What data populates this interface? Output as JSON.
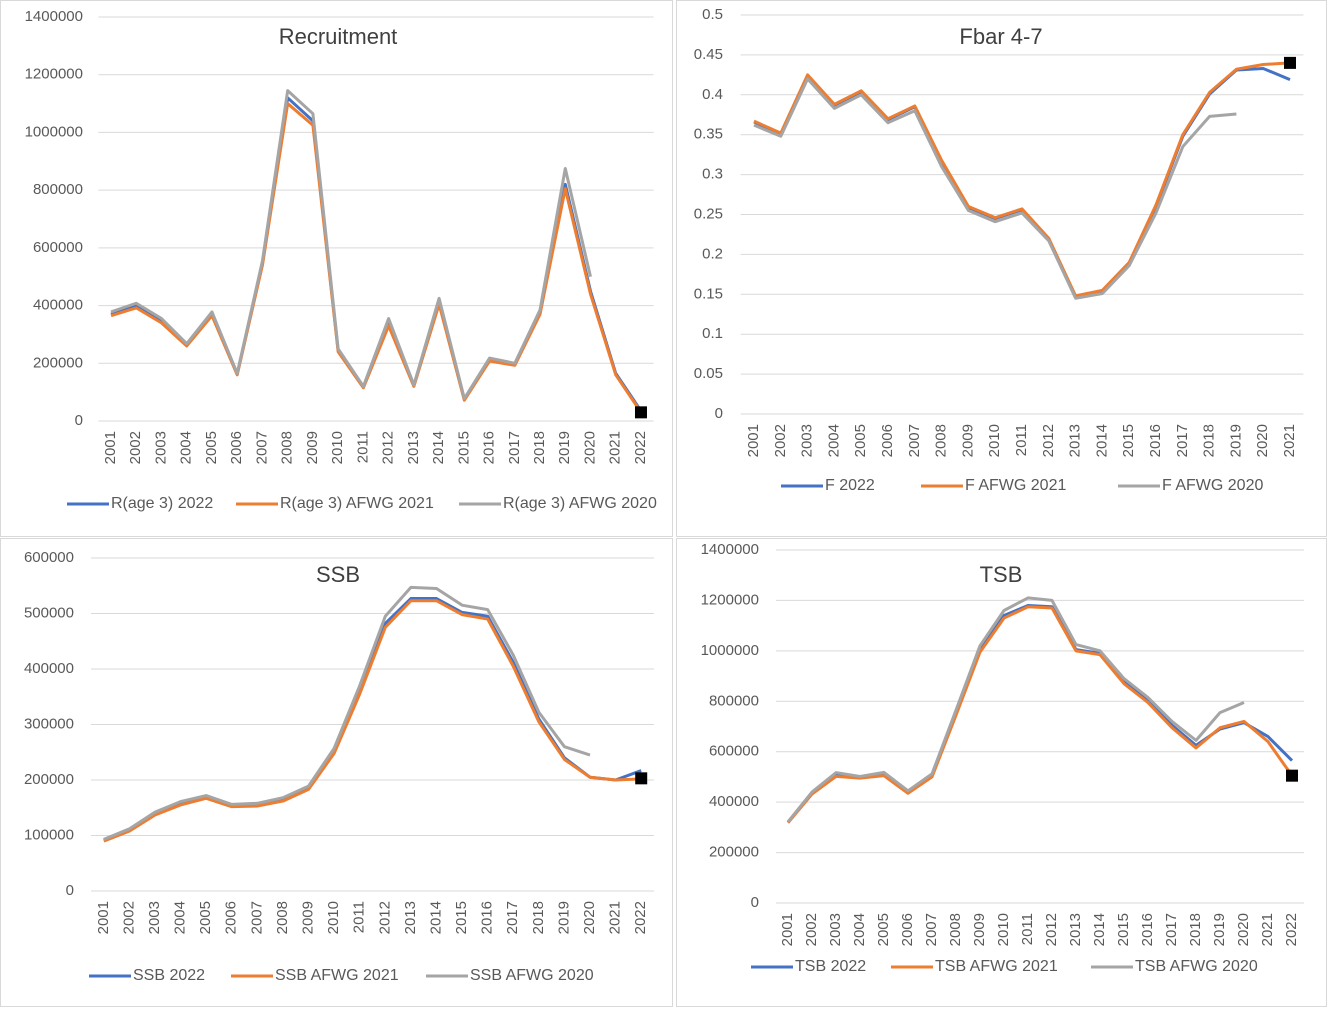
{
  "chart_data": [
    {
      "type": "line",
      "title": "Recruitment",
      "categories": [
        "2001",
        "2002",
        "2003",
        "2004",
        "2005",
        "2006",
        "2007",
        "2008",
        "2009",
        "2010",
        "2011",
        "2012",
        "2013",
        "2014",
        "2015",
        "2016",
        "2017",
        "2018",
        "2019",
        "2020",
        "2021",
        "2022"
      ],
      "series": [
        {
          "name": "R(age 3) 2022",
          "color": "#4472c4",
          "values": [
            370000,
            400000,
            345000,
            262000,
            370000,
            162000,
            545000,
            1120000,
            1040000,
            245000,
            118000,
            340000,
            122000,
            415000,
            75000,
            210000,
            195000,
            375000,
            820000,
            450000,
            165000,
            35000
          ]
        },
        {
          "name": "R(age 3) AFWG 2021",
          "color": "#ed7d31",
          "values": [
            365000,
            392000,
            340000,
            260000,
            365000,
            160000,
            540000,
            1100000,
            1025000,
            240000,
            115000,
            330000,
            120000,
            405000,
            72000,
            208000,
            193000,
            370000,
            805000,
            440000,
            160000,
            30000
          ]
        },
        {
          "name": "R(age 3) AFWG 2020",
          "color": "#a5a5a5",
          "values": [
            378000,
            408000,
            355000,
            268000,
            378000,
            165000,
            555000,
            1145000,
            1065000,
            250000,
            120000,
            355000,
            125000,
            425000,
            78000,
            218000,
            200000,
            385000,
            875000,
            500000,
            null,
            null
          ]
        }
      ],
      "marker": {
        "color": "#000000",
        "values": [
          null,
          null,
          null,
          null,
          null,
          null,
          null,
          null,
          null,
          null,
          null,
          null,
          null,
          null,
          null,
          null,
          null,
          null,
          null,
          null,
          null,
          30000
        ]
      },
      "ylim": [
        0,
        1400000
      ],
      "yticks": [
        0,
        200000,
        400000,
        600000,
        800000,
        1000000,
        1200000,
        1400000
      ],
      "grid": true
    },
    {
      "type": "line",
      "title": "Fbar 4-7",
      "categories": [
        "2001",
        "2002",
        "2003",
        "2004",
        "2005",
        "2006",
        "2007",
        "2008",
        "2009",
        "2010",
        "2011",
        "2012",
        "2013",
        "2014",
        "2015",
        "2016",
        "2017",
        "2018",
        "2019",
        "2020",
        "2021"
      ],
      "series": [
        {
          "name": "F 2022",
          "color": "#4472c4",
          "values": [
            0.366,
            0.351,
            0.424,
            0.387,
            0.404,
            0.369,
            0.385,
            0.316,
            0.259,
            0.245,
            0.256,
            0.219,
            0.147,
            0.154,
            0.189,
            0.26,
            0.348,
            0.401,
            0.431,
            0.433,
            0.419
          ]
        },
        {
          "name": "F AFWG 2021",
          "color": "#ed7d31",
          "values": [
            0.367,
            0.352,
            0.425,
            0.388,
            0.405,
            0.37,
            0.386,
            0.318,
            0.26,
            0.246,
            0.257,
            0.22,
            0.148,
            0.155,
            0.19,
            0.262,
            0.35,
            0.403,
            0.432,
            0.438,
            0.44
          ]
        },
        {
          "name": "F AFWG 2020",
          "color": "#a5a5a5",
          "values": [
            0.362,
            0.348,
            0.42,
            0.383,
            0.4,
            0.365,
            0.38,
            0.31,
            0.255,
            0.241,
            0.252,
            0.217,
            0.145,
            0.151,
            0.186,
            0.252,
            0.335,
            0.373,
            0.376,
            null,
            null
          ]
        }
      ],
      "marker": {
        "color": "#000000",
        "values": [
          null,
          null,
          null,
          null,
          null,
          null,
          null,
          null,
          null,
          null,
          null,
          null,
          null,
          null,
          null,
          null,
          null,
          null,
          null,
          null,
          0.44
        ]
      },
      "ylim": [
        0,
        0.5
      ],
      "yticks": [
        0,
        0.05,
        0.1,
        0.15,
        0.2,
        0.25,
        0.3,
        0.35,
        0.4,
        0.45,
        0.5
      ],
      "grid": true
    },
    {
      "type": "line",
      "title": "SSB",
      "categories": [
        "2001",
        "2002",
        "2003",
        "2004",
        "2005",
        "2006",
        "2007",
        "2008",
        "2009",
        "2010",
        "2011",
        "2012",
        "2013",
        "2014",
        "2015",
        "2016",
        "2017",
        "2018",
        "2019",
        "2020",
        "2021",
        "2022"
      ],
      "series": [
        {
          "name": "SSB 2022",
          "color": "#4472c4",
          "values": [
            92000,
            110000,
            139000,
            158000,
            169000,
            153000,
            155000,
            164000,
            185000,
            252000,
            365000,
            482000,
            527000,
            527000,
            502000,
            495000,
            412000,
            310000,
            240000,
            205000,
            200000,
            217000
          ]
        },
        {
          "name": "SSB AFWG 2021",
          "color": "#ed7d31",
          "values": [
            90000,
            108000,
            137000,
            155000,
            167000,
            152000,
            153000,
            162000,
            183000,
            248000,
            355000,
            475000,
            523000,
            523000,
            498000,
            490000,
            405000,
            305000,
            237000,
            205000,
            200000,
            202000
          ]
        },
        {
          "name": "SSB AFWG 2020",
          "color": "#a5a5a5",
          "values": [
            93000,
            112000,
            142000,
            161000,
            172000,
            156000,
            158000,
            168000,
            189000,
            257000,
            370000,
            495000,
            547000,
            545000,
            515000,
            507000,
            425000,
            322000,
            260000,
            245000,
            null,
            null
          ]
        }
      ],
      "marker": {
        "color": "#000000",
        "values": [
          null,
          null,
          null,
          null,
          null,
          null,
          null,
          null,
          null,
          null,
          null,
          null,
          null,
          null,
          null,
          null,
          null,
          null,
          null,
          null,
          null,
          203000
        ]
      },
      "ylim": [
        0,
        600000
      ],
      "yticks": [
        0,
        100000,
        200000,
        300000,
        400000,
        500000,
        600000
      ],
      "grid": true
    },
    {
      "type": "line",
      "title": "TSB",
      "categories": [
        "2001",
        "2002",
        "2003",
        "2004",
        "2005",
        "2006",
        "2007",
        "2008",
        "2009",
        "2010",
        "2011",
        "2012",
        "2013",
        "2014",
        "2015",
        "2016",
        "2017",
        "2018",
        "2019",
        "2020",
        "2021",
        "2022"
      ],
      "series": [
        {
          "name": "TSB 2022",
          "color": "#4472c4",
          "values": [
            320000,
            435000,
            508000,
            498000,
            510000,
            438000,
            505000,
            755000,
            1005000,
            1140000,
            1180000,
            1175000,
            1005000,
            990000,
            880000,
            800000,
            705000,
            625000,
            690000,
            715000,
            660000,
            565000
          ]
        },
        {
          "name": "TSB AFWG 2021",
          "color": "#ed7d31",
          "values": [
            318000,
            432000,
            502000,
            495000,
            505000,
            435000,
            500000,
            745000,
            995000,
            1130000,
            1175000,
            1170000,
            1000000,
            985000,
            870000,
            795000,
            695000,
            615000,
            695000,
            720000,
            640000,
            505000
          ]
        },
        {
          "name": "TSB AFWG 2020",
          "color": "#a5a5a5",
          "values": [
            322000,
            440000,
            517000,
            502000,
            518000,
            445000,
            512000,
            765000,
            1020000,
            1160000,
            1210000,
            1200000,
            1025000,
            1000000,
            890000,
            815000,
            720000,
            645000,
            755000,
            795000,
            null,
            null
          ]
        }
      ],
      "marker": {
        "color": "#000000",
        "values": [
          null,
          null,
          null,
          null,
          null,
          null,
          null,
          null,
          null,
          null,
          null,
          null,
          null,
          null,
          null,
          null,
          null,
          null,
          null,
          null,
          null,
          505000
        ]
      },
      "ylim": [
        0,
        1400000
      ],
      "yticks": [
        0,
        200000,
        400000,
        600000,
        800000,
        1000000,
        1200000,
        1400000
      ],
      "grid": true
    }
  ]
}
